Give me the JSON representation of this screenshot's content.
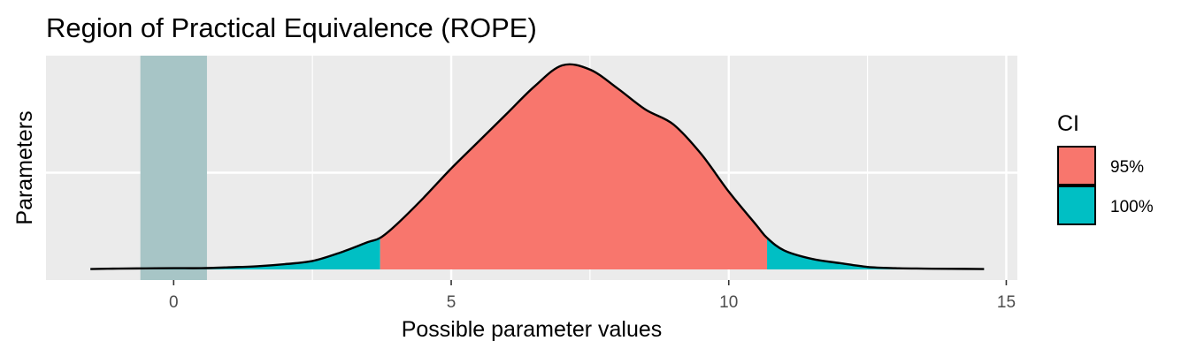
{
  "chart_data": {
    "type": "area",
    "title": "Region of Practical Equivalence (ROPE)",
    "xlabel": "Possible parameter values",
    "ylabel": "Parameters",
    "xlim": [
      -2.3,
      15.2
    ],
    "x_ticks": [
      0,
      5,
      10,
      15
    ],
    "x_tick_labels": [
      "0",
      "5",
      "10",
      "15"
    ],
    "grid": true,
    "rope": {
      "low": -0.6,
      "high": 0.6,
      "color": "#a7c5c6"
    },
    "ci_95": {
      "low": 3.72,
      "high": 10.69
    },
    "density": {
      "x": [
        -1.5,
        -1.0,
        -0.5,
        0.0,
        0.5,
        1.0,
        1.5,
        2.0,
        2.5,
        3.0,
        3.5,
        3.72,
        4.0,
        4.5,
        5.0,
        5.5,
        6.0,
        6.5,
        7.0,
        7.5,
        8.0,
        8.5,
        9.0,
        9.5,
        10.0,
        10.5,
        10.69,
        11.0,
        11.5,
        12.0,
        12.5,
        13.0,
        13.5,
        14.0,
        14.6
      ],
      "y": [
        0.002,
        0.004,
        0.005,
        0.006,
        0.006,
        0.01,
        0.015,
        0.025,
        0.04,
        0.08,
        0.13,
        0.15,
        0.21,
        0.34,
        0.48,
        0.61,
        0.74,
        0.87,
        0.97,
        0.95,
        0.86,
        0.76,
        0.69,
        0.55,
        0.37,
        0.21,
        0.15,
        0.09,
        0.05,
        0.03,
        0.012,
        0.006,
        0.004,
        0.003,
        0.002
      ]
    },
    "legend": {
      "title": "CI",
      "placement": "right",
      "items": [
        {
          "label": "95%",
          "color": "#f8766d"
        },
        {
          "label": "100%",
          "color": "#00bfc4"
        }
      ]
    },
    "panel_color": "#ebebeb",
    "outline_color": "#000000"
  }
}
